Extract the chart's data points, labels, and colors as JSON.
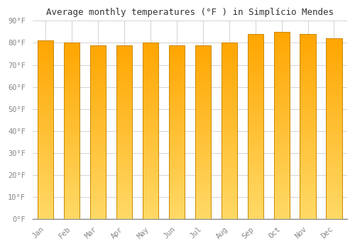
{
  "months": [
    "Jan",
    "Feb",
    "Mar",
    "Apr",
    "May",
    "Jun",
    "Jul",
    "Aug",
    "Sep",
    "Oct",
    "Nov",
    "Dec"
  ],
  "values": [
    81,
    80,
    79,
    79,
    80,
    79,
    79,
    80,
    84,
    85,
    84,
    82
  ],
  "bar_color_bottom": "#FFD966",
  "bar_color_top": "#FFA500",
  "bar_edge_color": "#CC8800",
  "title": "Average monthly temperatures (°F ) in Simplício Mendes",
  "ylim": [
    0,
    90
  ],
  "ytick_step": 10,
  "background_color": "#FFFFFF",
  "grid_color": "#CCCCCC",
  "title_fontsize": 9,
  "tick_fontsize": 7.5
}
